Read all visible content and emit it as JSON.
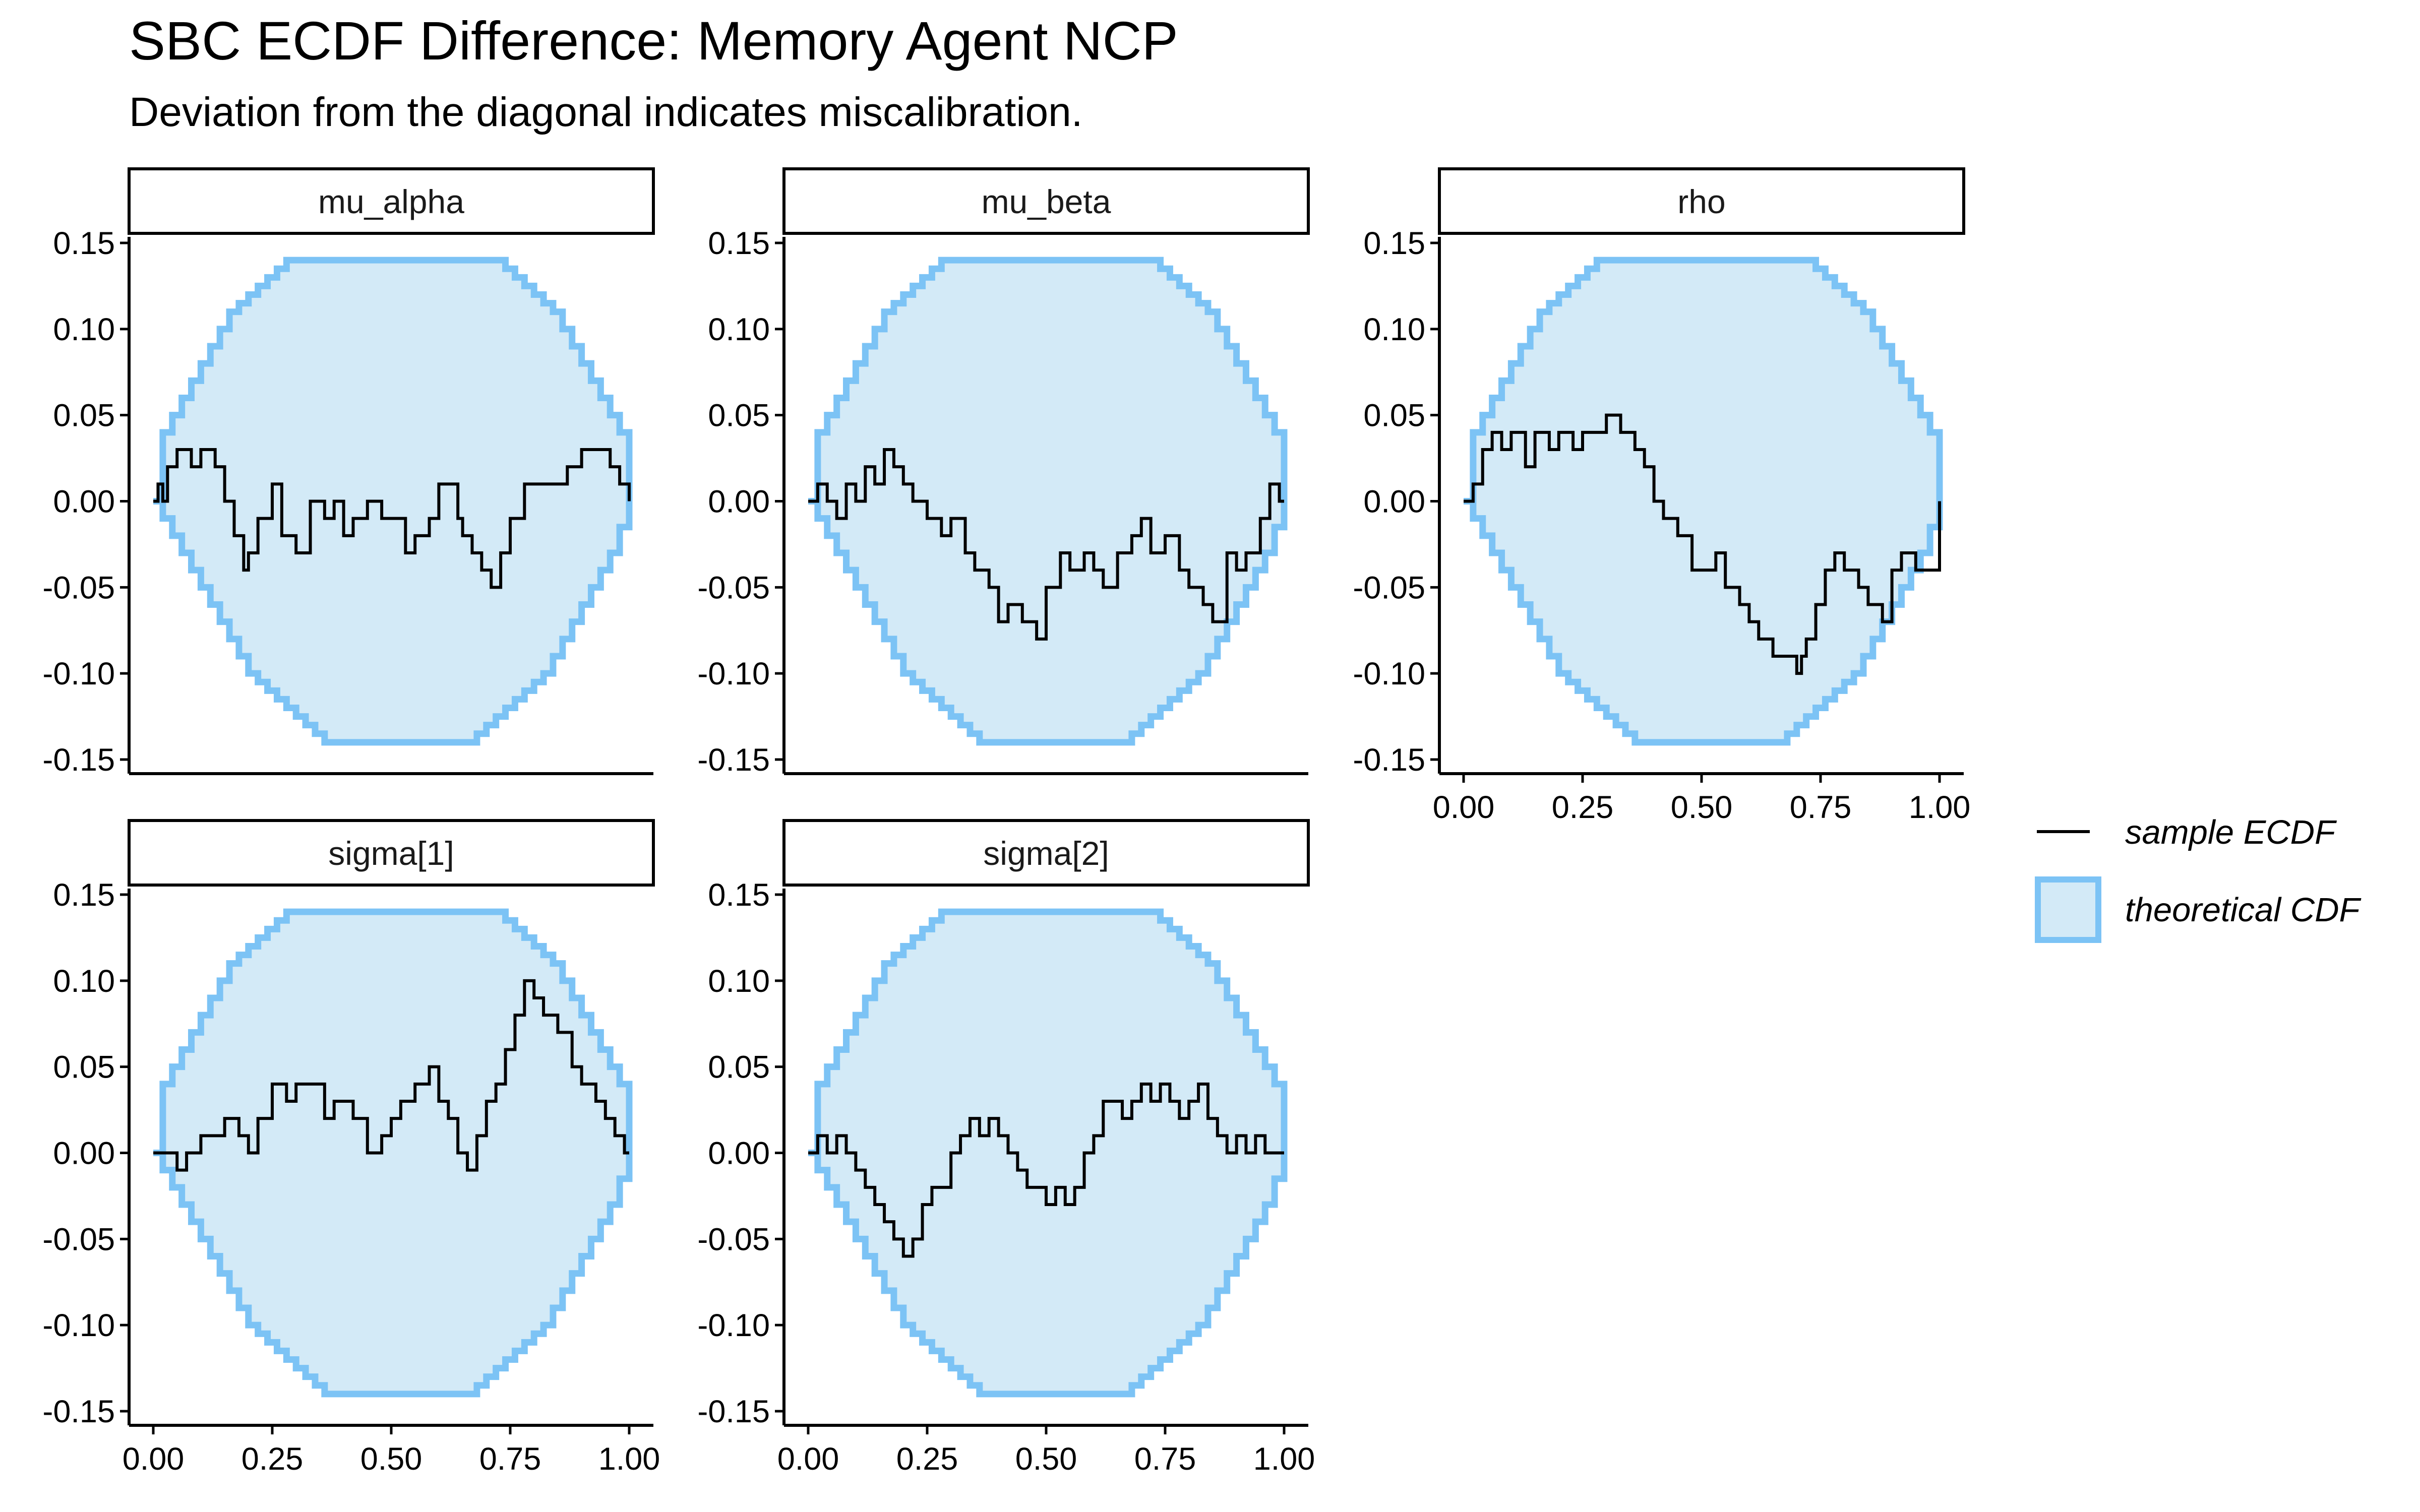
{
  "chart_data": {
    "type": "line",
    "title": "SBC ECDF Difference: Memory Agent NCP",
    "subtitle": "Deviation from the diagonal indicates miscalibration.",
    "xlim": [
      0,
      1
    ],
    "ylim": [
      -0.15,
      0.15
    ],
    "x_ticks": [
      "0.00",
      "0.25",
      "0.50",
      "0.75",
      "1.00"
    ],
    "y_ticks": [
      "0.15",
      "0.10",
      "0.05",
      "0.00",
      "-0.05",
      "-0.10",
      "-0.15"
    ],
    "y_tick_values": [
      0.15,
      0.1,
      0.05,
      0.0,
      -0.05,
      -0.1,
      -0.15
    ],
    "x_tick_values": [
      0,
      0.25,
      0.5,
      0.75,
      1.0
    ],
    "grid": false,
    "legend_position": "right",
    "legend": [
      {
        "label": "sample ECDF",
        "kind": "line",
        "color": "#000000"
      },
      {
        "label": "theoretical CDF",
        "kind": "band",
        "color": "#7cc3f5",
        "fill": "#d3eaf7"
      }
    ],
    "band": {
      "x": [
        0,
        0.02,
        0.04,
        0.06,
        0.08,
        0.1,
        0.12,
        0.14,
        0.16,
        0.18,
        0.2,
        0.22,
        0.24,
        0.26,
        0.28,
        0.3,
        0.32,
        0.34,
        0.36,
        0.38,
        0.4,
        0.42,
        0.44,
        0.46,
        0.48,
        0.5,
        0.52,
        0.54,
        0.56,
        0.58,
        0.6,
        0.62,
        0.64,
        0.66,
        0.68,
        0.7,
        0.72,
        0.74,
        0.76,
        0.78,
        0.8,
        0.82,
        0.84,
        0.86,
        0.88,
        0.9,
        0.92,
        0.94,
        0.96,
        0.98,
        1.0
      ],
      "upper": [
        0.0,
        0.04,
        0.05,
        0.06,
        0.07,
        0.08,
        0.09,
        0.1,
        0.11,
        0.115,
        0.12,
        0.125,
        0.13,
        0.135,
        0.14,
        0.14,
        0.14,
        0.14,
        0.14,
        0.14,
        0.14,
        0.14,
        0.14,
        0.14,
        0.14,
        0.14,
        0.14,
        0.14,
        0.14,
        0.14,
        0.14,
        0.14,
        0.14,
        0.14,
        0.14,
        0.14,
        0.14,
        0.135,
        0.13,
        0.125,
        0.12,
        0.115,
        0.11,
        0.1,
        0.09,
        0.08,
        0.07,
        0.06,
        0.05,
        0.04,
        0.0
      ],
      "lower": [
        0.0,
        -0.01,
        -0.02,
        -0.03,
        -0.04,
        -0.05,
        -0.06,
        -0.07,
        -0.08,
        -0.09,
        -0.1,
        -0.105,
        -0.11,
        -0.115,
        -0.12,
        -0.125,
        -0.13,
        -0.135,
        -0.14,
        -0.14,
        -0.14,
        -0.14,
        -0.14,
        -0.14,
        -0.14,
        -0.14,
        -0.14,
        -0.14,
        -0.14,
        -0.14,
        -0.14,
        -0.14,
        -0.14,
        -0.14,
        -0.135,
        -0.13,
        -0.125,
        -0.12,
        -0.115,
        -0.11,
        -0.105,
        -0.1,
        -0.09,
        -0.08,
        -0.07,
        -0.06,
        -0.05,
        -0.04,
        -0.03,
        -0.015,
        0.0
      ]
    },
    "panels": [
      {
        "name": "mu_alpha",
        "x": [
          0.0,
          0.01,
          0.02,
          0.03,
          0.05,
          0.08,
          0.1,
          0.13,
          0.15,
          0.17,
          0.19,
          0.2,
          0.22,
          0.25,
          0.27,
          0.3,
          0.33,
          0.36,
          0.38,
          0.4,
          0.42,
          0.45,
          0.48,
          0.5,
          0.53,
          0.55,
          0.58,
          0.6,
          0.62,
          0.64,
          0.65,
          0.67,
          0.69,
          0.71,
          0.73,
          0.75,
          0.78,
          0.8,
          0.84,
          0.87,
          0.9,
          0.93,
          0.96,
          0.98,
          1.0
        ],
        "y": [
          0.0,
          0.01,
          0.0,
          0.02,
          0.03,
          0.02,
          0.03,
          0.02,
          0.0,
          -0.02,
          -0.04,
          -0.03,
          -0.01,
          0.01,
          -0.02,
          -0.03,
          0.0,
          -0.01,
          0.0,
          -0.02,
          -0.01,
          0.0,
          -0.01,
          -0.01,
          -0.03,
          -0.02,
          -0.01,
          0.01,
          0.01,
          -0.01,
          -0.02,
          -0.03,
          -0.04,
          -0.05,
          -0.03,
          -0.01,
          0.01,
          0.01,
          0.01,
          0.02,
          0.03,
          0.03,
          0.02,
          0.01,
          0.0
        ]
      },
      {
        "name": "mu_beta",
        "x": [
          0.0,
          0.02,
          0.04,
          0.06,
          0.08,
          0.1,
          0.12,
          0.14,
          0.16,
          0.18,
          0.2,
          0.22,
          0.25,
          0.28,
          0.3,
          0.33,
          0.35,
          0.38,
          0.4,
          0.42,
          0.45,
          0.48,
          0.5,
          0.53,
          0.55,
          0.58,
          0.6,
          0.62,
          0.65,
          0.68,
          0.7,
          0.72,
          0.75,
          0.78,
          0.8,
          0.83,
          0.85,
          0.88,
          0.9,
          0.92,
          0.95,
          0.97,
          0.99,
          1.0
        ],
        "y": [
          0.0,
          0.01,
          0.0,
          -0.01,
          0.01,
          0.0,
          0.02,
          0.01,
          0.03,
          0.02,
          0.01,
          0.0,
          -0.01,
          -0.02,
          -0.01,
          -0.03,
          -0.04,
          -0.05,
          -0.07,
          -0.06,
          -0.07,
          -0.08,
          -0.05,
          -0.03,
          -0.04,
          -0.03,
          -0.04,
          -0.05,
          -0.03,
          -0.02,
          -0.01,
          -0.03,
          -0.02,
          -0.04,
          -0.05,
          -0.06,
          -0.07,
          -0.03,
          -0.04,
          -0.03,
          -0.01,
          0.01,
          0.0,
          0.0
        ]
      },
      {
        "name": "rho",
        "x": [
          0.0,
          0.02,
          0.04,
          0.06,
          0.08,
          0.1,
          0.13,
          0.15,
          0.18,
          0.2,
          0.23,
          0.25,
          0.28,
          0.3,
          0.33,
          0.36,
          0.38,
          0.4,
          0.42,
          0.45,
          0.48,
          0.5,
          0.53,
          0.55,
          0.58,
          0.6,
          0.62,
          0.65,
          0.68,
          0.7,
          0.71,
          0.72,
          0.74,
          0.76,
          0.78,
          0.8,
          0.83,
          0.85,
          0.88,
          0.9,
          0.92,
          0.95,
          0.98,
          1.0,
          1.0
        ],
        "y": [
          0.0,
          0.01,
          0.03,
          0.04,
          0.03,
          0.04,
          0.02,
          0.04,
          0.03,
          0.04,
          0.03,
          0.04,
          0.04,
          0.05,
          0.04,
          0.03,
          0.02,
          0.0,
          -0.01,
          -0.02,
          -0.04,
          -0.04,
          -0.03,
          -0.05,
          -0.06,
          -0.07,
          -0.08,
          -0.09,
          -0.09,
          -0.1,
          -0.09,
          -0.08,
          -0.06,
          -0.04,
          -0.03,
          -0.04,
          -0.05,
          -0.06,
          -0.07,
          -0.04,
          -0.03,
          -0.04,
          -0.04,
          -0.03,
          0.0
        ]
      },
      {
        "name": "sigma[1]",
        "x": [
          0.0,
          0.03,
          0.05,
          0.07,
          0.1,
          0.13,
          0.15,
          0.18,
          0.2,
          0.22,
          0.25,
          0.28,
          0.3,
          0.33,
          0.36,
          0.38,
          0.4,
          0.42,
          0.45,
          0.48,
          0.5,
          0.52,
          0.55,
          0.58,
          0.6,
          0.62,
          0.64,
          0.66,
          0.68,
          0.7,
          0.72,
          0.74,
          0.76,
          0.78,
          0.8,
          0.82,
          0.85,
          0.88,
          0.9,
          0.93,
          0.95,
          0.97,
          0.99,
          1.0
        ],
        "y": [
          0.0,
          0.0,
          -0.01,
          0.0,
          0.01,
          0.01,
          0.02,
          0.01,
          0.0,
          0.02,
          0.04,
          0.03,
          0.04,
          0.04,
          0.02,
          0.03,
          0.03,
          0.02,
          0.0,
          0.01,
          0.02,
          0.03,
          0.04,
          0.05,
          0.03,
          0.02,
          0.0,
          -0.01,
          0.01,
          0.03,
          0.04,
          0.06,
          0.08,
          0.1,
          0.09,
          0.08,
          0.07,
          0.05,
          0.04,
          0.03,
          0.02,
          0.01,
          0.0,
          0.0
        ]
      },
      {
        "name": "sigma[2]",
        "x": [
          0.0,
          0.02,
          0.04,
          0.06,
          0.08,
          0.1,
          0.12,
          0.14,
          0.16,
          0.18,
          0.2,
          0.22,
          0.24,
          0.26,
          0.28,
          0.3,
          0.32,
          0.34,
          0.36,
          0.38,
          0.4,
          0.42,
          0.44,
          0.46,
          0.48,
          0.5,
          0.52,
          0.54,
          0.56,
          0.58,
          0.6,
          0.62,
          0.64,
          0.66,
          0.68,
          0.7,
          0.72,
          0.74,
          0.76,
          0.78,
          0.8,
          0.82,
          0.84,
          0.86,
          0.88,
          0.9,
          0.92,
          0.94,
          0.96,
          0.98,
          1.0
        ],
        "y": [
          0.0,
          0.01,
          0.0,
          0.01,
          0.0,
          -0.01,
          -0.02,
          -0.03,
          -0.04,
          -0.05,
          -0.06,
          -0.05,
          -0.03,
          -0.02,
          -0.02,
          0.0,
          0.01,
          0.02,
          0.01,
          0.02,
          0.01,
          0.0,
          -0.01,
          -0.02,
          -0.02,
          -0.03,
          -0.02,
          -0.03,
          -0.02,
          0.0,
          0.01,
          0.03,
          0.03,
          0.02,
          0.03,
          0.04,
          0.03,
          0.04,
          0.03,
          0.02,
          0.03,
          0.04,
          0.02,
          0.01,
          0.0,
          0.01,
          0.0,
          0.01,
          0.0,
          0.0,
          0.0
        ]
      }
    ]
  }
}
